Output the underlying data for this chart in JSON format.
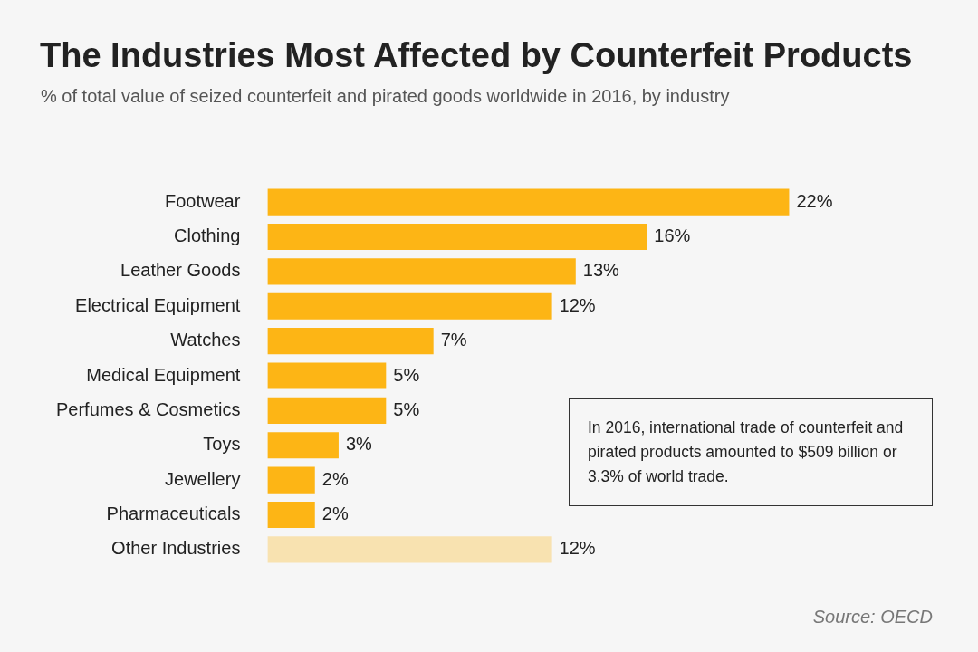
{
  "chart_data": {
    "type": "bar",
    "orientation": "horizontal",
    "title": "The Industries Most Affected by Counterfeit Products",
    "subtitle": "% of total value of seized counterfeit and pirated goods worldwide in 2016, by industry",
    "categories": [
      "Footwear",
      "Clothing",
      "Leather Goods",
      "Electrical Equipment",
      "Watches",
      "Medical Equipment",
      "Perfumes & Cosmetics",
      "Toys",
      "Jewellery",
      "Pharmaceuticals",
      "Other Industries"
    ],
    "values": [
      22,
      16,
      13,
      12,
      7,
      5,
      5,
      3,
      2,
      2,
      12
    ],
    "colors": [
      "#fdb515",
      "#fdb515",
      "#fdb515",
      "#fdb515",
      "#fdb515",
      "#fdb515",
      "#fdb515",
      "#fdb515",
      "#fdb515",
      "#fdb515",
      "#f8e2b0"
    ],
    "value_labels": [
      "22%",
      "16%",
      "13%",
      "12%",
      "7%",
      "5%",
      "5%",
      "3%",
      "2%",
      "2%",
      "12%"
    ],
    "annotations": [
      "In 2016, international trade of counterfeit and pirated products amounted to $509 billion or 3.3% of world trade.",
      "Source: OECD"
    ],
    "legend": false
  }
}
